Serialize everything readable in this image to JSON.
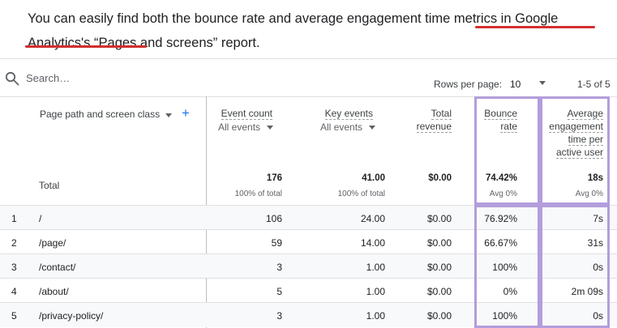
{
  "caption": {
    "part1": "You can easily find both the bounce rate and average engagement time metrics in ",
    "highlight1": "Google Analytics's",
    "part2": " ",
    "highlight2": "“Pages and screens”",
    "part3": " report."
  },
  "toolbar": {
    "search_placeholder": "Search…",
    "rows_per_page_label": "Rows per page:",
    "rows_per_page_value": "10",
    "range": "1-5 of 5"
  },
  "table": {
    "dimension_header": "Page path and screen class",
    "headers": {
      "event_count": "Event count",
      "event_count_filter": "All events",
      "key_events": "Key events",
      "key_events_filter": "All events",
      "total_revenue_1": "Total",
      "total_revenue_2": "revenue",
      "bounce_rate_1": "Bounce",
      "bounce_rate_2": "rate",
      "avg_eng_1": "Average",
      "avg_eng_2": "engagement",
      "avg_eng_3": "time per",
      "avg_eng_4": "active user"
    },
    "totals": {
      "label": "Total",
      "event_count": "176",
      "event_count_sub": "100% of total",
      "key_events": "41.00",
      "key_events_sub": "100% of total",
      "total_revenue": "$0.00",
      "bounce_rate": "74.42%",
      "bounce_rate_sub": "Avg 0%",
      "avg_eng": "18s",
      "avg_eng_sub": "Avg 0%"
    },
    "rows": [
      {
        "idx": "1",
        "path": "/",
        "event_count": "106",
        "key_events": "24.00",
        "revenue": "$0.00",
        "bounce": "76.92%",
        "avg_eng": "7s"
      },
      {
        "idx": "2",
        "path": "/page/",
        "event_count": "59",
        "key_events": "14.00",
        "revenue": "$0.00",
        "bounce": "66.67%",
        "avg_eng": "31s"
      },
      {
        "idx": "3",
        "path": "/contact/",
        "event_count": "3",
        "key_events": "1.00",
        "revenue": "$0.00",
        "bounce": "100%",
        "avg_eng": "0s"
      },
      {
        "idx": "4",
        "path": "/about/",
        "event_count": "5",
        "key_events": "1.00",
        "revenue": "$0.00",
        "bounce": "0%",
        "avg_eng": "2m 09s"
      },
      {
        "idx": "5",
        "path": "/privacy-policy/",
        "event_count": "3",
        "key_events": "1.00",
        "revenue": "$0.00",
        "bounce": "100%",
        "avg_eng": "0s"
      }
    ]
  },
  "colors": {
    "underline": "#d32f2f",
    "highlight_box": "#b39ddb",
    "accent": "#1a73e8"
  },
  "icons": {
    "search": "search-icon",
    "add": "plus-icon",
    "caret": "caret-down-icon"
  }
}
